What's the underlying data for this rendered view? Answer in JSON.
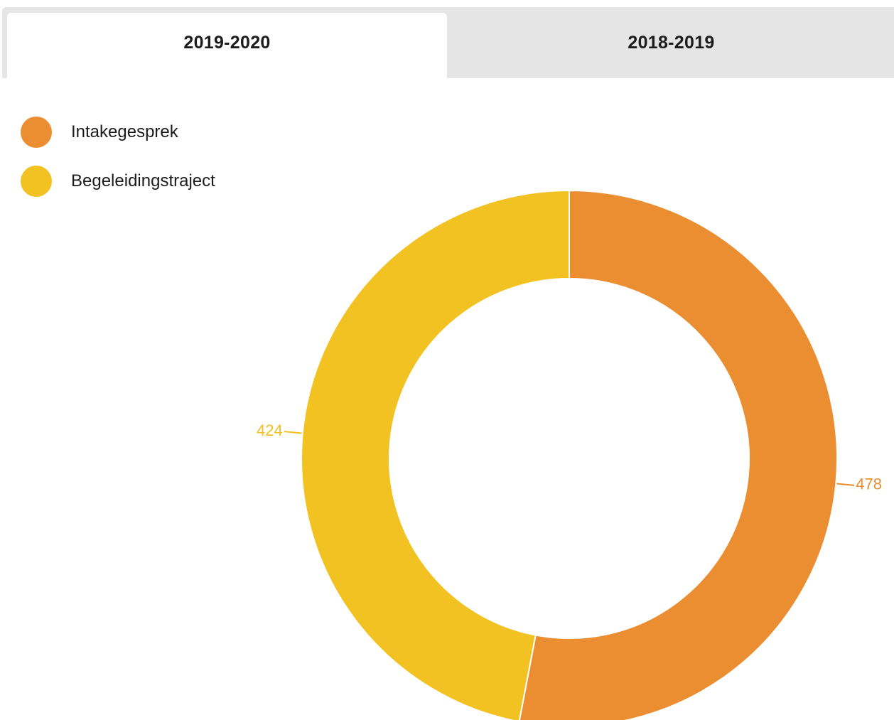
{
  "tabs": [
    {
      "label": "2019-2020",
      "active": true
    },
    {
      "label": "2018-2019",
      "active": false
    }
  ],
  "chart_data": {
    "type": "pie",
    "variant": "donut",
    "categories": [
      "Intakegesprek",
      "Begeleidingstraject"
    ],
    "values": [
      478,
      424
    ],
    "colors": [
      "#EA8E31",
      "#F2C122"
    ],
    "data_labels": [
      "478",
      "424"
    ],
    "legend_position": "top-left"
  }
}
